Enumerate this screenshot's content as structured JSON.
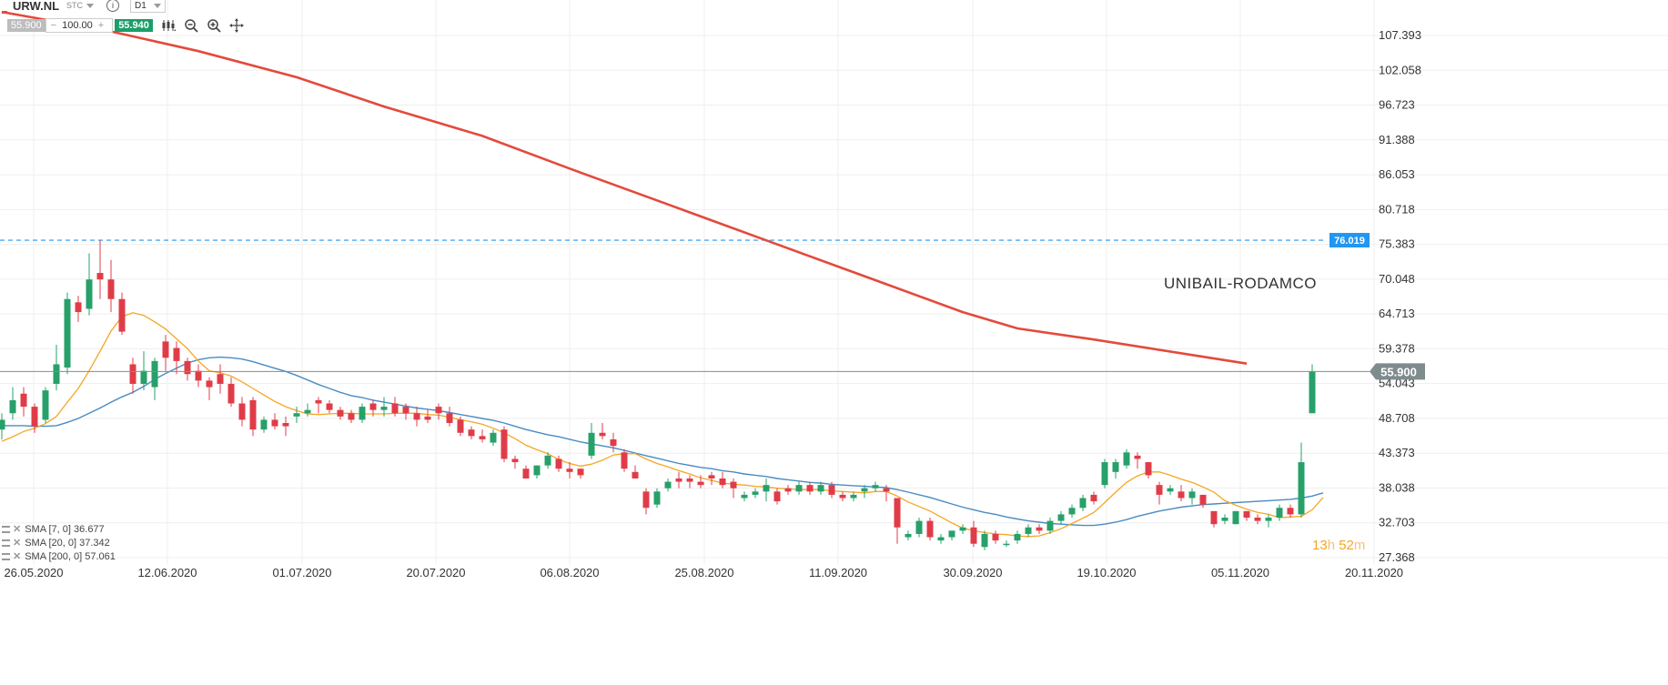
{
  "header": {
    "symbol": "URW.NL",
    "instrument_type": "STC",
    "info_icon": "info-icon",
    "timeframe": "D1",
    "sell_price": "55.900",
    "quantity": "100.00",
    "minus": "−",
    "plus": "+",
    "buy_price": "55.940",
    "tools": [
      "candlestick-icon",
      "zoom-out-icon",
      "zoom-in-icon",
      "crosshair-move-icon"
    ]
  },
  "countdown": {
    "hours": "13",
    "hours_unit": "h",
    "minutes": "52",
    "minutes_unit": "m"
  },
  "indicators": [
    {
      "label": "SMA [7, 0] 36.677"
    },
    {
      "label": "SMA [20, 0] 37.342"
    },
    {
      "label": "SMA [200, 0] 57.061"
    }
  ],
  "chart_data": {
    "type": "candlestick",
    "title": "UNIBAIL-RODAMCO",
    "timeframe": "D1",
    "x_ticks": [
      "26.05.2020",
      "12.06.2020",
      "01.07.2020",
      "20.07.2020",
      "06.08.2020",
      "25.08.2020",
      "11.09.2020",
      "30.09.2020",
      "19.10.2020",
      "05.11.2020",
      "20.11.2020"
    ],
    "y_ticks": [
      "107.393",
      "102.058",
      "96.723",
      "91.388",
      "86.053",
      "80.718",
      "75.383",
      "70.048",
      "64.713",
      "59.378",
      "54.043",
      "48.708",
      "43.373",
      "38.038",
      "32.703",
      "27.368"
    ],
    "ylim": [
      27.368,
      107.393
    ],
    "grid": true,
    "price_axis": "right",
    "current_price": {
      "value": 55.9,
      "label": "55.900",
      "color": "#7f8c8d"
    },
    "horizontal_line": {
      "value": 76.019,
      "label": "76.019",
      "style": "dashed",
      "color": "#2196f3"
    },
    "colors": {
      "up": "#27a06a",
      "down": "#e03c48",
      "sma7": "#f5a623",
      "sma20": "#4a8bc2",
      "sma200": "#e34a3c"
    },
    "candles": [
      [
        47.0,
        48.5,
        45.5,
        49.5
      ],
      [
        49.5,
        51.5,
        48.5,
        53.5
      ],
      [
        52.5,
        50.5,
        49.0,
        53.5
      ],
      [
        50.5,
        47.5,
        46.5,
        51.0
      ],
      [
        48.5,
        53.0,
        48.0,
        53.5
      ],
      [
        54.0,
        57.0,
        53.0,
        60.0
      ],
      [
        56.5,
        67.0,
        55.5,
        68.0
      ],
      [
        66.5,
        65.0,
        63.5,
        67.5
      ],
      [
        65.5,
        70.0,
        64.5,
        74.0
      ],
      [
        71.0,
        70.0,
        67.0,
        76.0
      ],
      [
        70.0,
        67.0,
        65.0,
        73.0
      ],
      [
        67.0,
        62.0,
        61.5,
        68.0
      ],
      [
        57.0,
        54.0,
        52.5,
        58.0
      ],
      [
        54.0,
        56.0,
        53.0,
        59.0
      ],
      [
        53.5,
        57.5,
        51.5,
        58.0
      ],
      [
        60.5,
        58.0,
        56.0,
        61.5
      ],
      [
        59.5,
        57.5,
        55.5,
        60.5
      ],
      [
        57.5,
        55.5,
        54.5,
        58.0
      ],
      [
        56.0,
        54.5,
        53.5,
        57.0
      ],
      [
        54.5,
        53.5,
        51.5,
        55.0
      ],
      [
        55.5,
        54.0,
        52.5,
        57.0
      ],
      [
        54.0,
        51.0,
        50.5,
        55.0
      ],
      [
        51.0,
        48.5,
        47.5,
        52.0
      ],
      [
        51.5,
        47.0,
        46.0,
        52.0
      ],
      [
        47.0,
        48.5,
        46.5,
        49.0
      ],
      [
        48.5,
        47.5,
        47.0,
        49.5
      ],
      [
        48.0,
        47.5,
        46.0,
        49.0
      ],
      [
        49.0,
        49.5,
        48.0,
        50.5
      ],
      [
        49.5,
        50.0,
        49.0,
        51.0
      ],
      [
        51.5,
        51.0,
        49.5,
        52.0
      ],
      [
        51.0,
        50.0,
        49.5,
        51.5
      ],
      [
        50.0,
        49.0,
        48.5,
        50.5
      ],
      [
        49.5,
        48.5,
        48.0,
        50.0
      ],
      [
        48.5,
        50.5,
        48.0,
        51.0
      ],
      [
        51.0,
        50.0,
        49.0,
        51.5
      ],
      [
        50.0,
        50.5,
        49.0,
        52.0
      ],
      [
        51.0,
        49.5,
        49.0,
        52.0
      ],
      [
        50.5,
        49.5,
        48.5,
        51.0
      ],
      [
        49.5,
        48.5,
        47.5,
        50.5
      ],
      [
        49.0,
        48.5,
        48.0,
        50.0
      ],
      [
        50.5,
        49.5,
        48.5,
        51.0
      ],
      [
        49.5,
        48.0,
        47.5,
        50.5
      ],
      [
        48.5,
        46.5,
        46.0,
        49.0
      ],
      [
        47.0,
        46.0,
        45.5,
        47.5
      ],
      [
        46.0,
        45.5,
        45.0,
        47.0
      ],
      [
        45.0,
        46.5,
        44.5,
        47.0
      ],
      [
        47.0,
        42.5,
        42.0,
        47.5
      ],
      [
        42.5,
        42.0,
        41.0,
        43.0
      ],
      [
        41.0,
        39.5,
        39.5,
        41.5
      ],
      [
        40.0,
        41.5,
        39.5,
        41.5
      ],
      [
        41.5,
        43.0,
        41.0,
        43.5
      ],
      [
        42.5,
        41.0,
        40.5,
        43.0
      ],
      [
        41.0,
        40.5,
        39.5,
        42.0
      ],
      [
        41.0,
        40.0,
        39.5,
        41.0
      ],
      [
        43.0,
        46.5,
        42.5,
        48.0
      ],
      [
        46.5,
        46.0,
        45.5,
        48.0
      ],
      [
        45.5,
        44.5,
        43.5,
        46.5
      ],
      [
        43.5,
        41.0,
        40.5,
        44.0
      ],
      [
        40.5,
        39.5,
        39.5,
        41.5
      ],
      [
        37.5,
        35.0,
        34.0,
        38.0
      ],
      [
        35.5,
        37.5,
        35.0,
        38.0
      ],
      [
        38.0,
        39.0,
        37.5,
        39.5
      ],
      [
        39.5,
        39.0,
        38.0,
        40.5
      ],
      [
        39.5,
        39.0,
        38.0,
        40.0
      ],
      [
        39.0,
        38.5,
        38.0,
        40.0
      ],
      [
        40.0,
        39.5,
        38.5,
        40.5
      ],
      [
        39.5,
        38.5,
        38.0,
        40.5
      ],
      [
        39.0,
        38.0,
        36.5,
        39.5
      ],
      [
        36.5,
        37.0,
        36.0,
        37.5
      ],
      [
        37.0,
        37.5,
        36.5,
        38.0
      ],
      [
        37.5,
        38.5,
        36.0,
        39.5
      ],
      [
        37.5,
        36.0,
        35.5,
        38.0
      ],
      [
        38.0,
        37.5,
        37.0,
        38.5
      ],
      [
        37.5,
        38.5,
        37.0,
        39.0
      ],
      [
        38.5,
        37.5,
        37.0,
        39.0
      ],
      [
        37.5,
        38.5,
        37.0,
        39.0
      ],
      [
        38.5,
        37.0,
        36.5,
        39.0
      ],
      [
        37.0,
        36.5,
        36.0,
        37.5
      ],
      [
        36.5,
        37.0,
        36.0,
        37.5
      ],
      [
        37.5,
        38.0,
        36.5,
        38.5
      ],
      [
        38.0,
        38.5,
        37.5,
        39.0
      ],
      [
        38.0,
        37.5,
        36.0,
        38.5
      ],
      [
        36.5,
        32.0,
        29.5,
        36.5
      ],
      [
        30.5,
        31.0,
        30.0,
        31.5
      ],
      [
        31.0,
        33.0,
        30.5,
        33.5
      ],
      [
        33.0,
        30.5,
        30.0,
        33.5
      ],
      [
        30.0,
        30.5,
        29.5,
        31.0
      ],
      [
        30.5,
        31.5,
        30.0,
        31.5
      ],
      [
        31.5,
        32.0,
        31.0,
        32.5
      ],
      [
        32.0,
        29.5,
        29.0,
        33.0
      ],
      [
        29.0,
        31.0,
        28.5,
        31.5
      ],
      [
        31.0,
        30.0,
        29.5,
        31.5
      ],
      [
        29.5,
        29.5,
        29.0,
        30.0
      ],
      [
        30.0,
        31.0,
        29.5,
        31.5
      ],
      [
        31.0,
        32.0,
        30.5,
        32.5
      ],
      [
        32.0,
        31.5,
        31.0,
        32.5
      ],
      [
        31.5,
        33.0,
        31.0,
        33.5
      ],
      [
        33.0,
        34.0,
        32.5,
        34.5
      ],
      [
        34.0,
        35.0,
        33.5,
        35.5
      ],
      [
        35.0,
        36.5,
        34.5,
        37.0
      ],
      [
        37.0,
        36.0,
        35.5,
        37.5
      ],
      [
        38.5,
        42.0,
        38.0,
        42.5
      ],
      [
        40.5,
        42.0,
        39.5,
        42.5
      ],
      [
        41.5,
        43.5,
        41.0,
        44.0
      ],
      [
        43.0,
        42.5,
        41.0,
        43.5
      ],
      [
        42.0,
        40.0,
        39.5,
        42.0
      ],
      [
        38.5,
        37.0,
        35.5,
        39.0
      ],
      [
        37.5,
        38.0,
        37.0,
        38.5
      ],
      [
        37.5,
        36.5,
        36.0,
        38.5
      ],
      [
        36.5,
        37.5,
        35.5,
        38.0
      ],
      [
        37.0,
        35.5,
        35.0,
        37.0
      ],
      [
        34.5,
        32.5,
        32.0,
        34.5
      ],
      [
        33.0,
        33.5,
        32.5,
        34.0
      ],
      [
        32.5,
        34.5,
        32.5,
        34.5
      ],
      [
        34.5,
        33.5,
        33.0,
        34.5
      ],
      [
        33.5,
        33.0,
        32.5,
        34.0
      ],
      [
        33.0,
        33.5,
        32.0,
        34.0
      ],
      [
        33.5,
        35.0,
        33.0,
        35.5
      ],
      [
        35.0,
        34.0,
        33.5,
        35.5
      ],
      [
        34.0,
        42.0,
        33.5,
        45.0
      ],
      [
        49.5,
        55.9,
        49.5,
        57.0
      ]
    ],
    "series": [
      {
        "name": "SMA [7, 0]",
        "values": [
          45.2,
          45.9,
          46.7,
          47.2,
          47.9,
          49.0,
          51.2,
          53.3,
          56.0,
          59.0,
          62.1,
          64.3,
          64.9,
          64.5,
          63.5,
          62.4,
          60.9,
          59.4,
          57.5,
          56.0,
          55.7,
          55.2,
          54.3,
          53.3,
          52.3,
          51.3,
          50.5,
          49.9,
          49.4,
          49.3,
          49.4,
          49.5,
          49.5,
          49.4,
          49.4,
          49.4,
          49.5,
          49.5,
          49.5,
          49.3,
          49.2,
          48.9,
          48.5,
          48.2,
          47.8,
          47.2,
          46.5,
          45.6,
          44.6,
          43.9,
          43.3,
          42.4,
          41.8,
          41.4,
          41.7,
          42.3,
          43.1,
          43.3,
          43.3,
          42.5,
          41.8,
          41.3,
          40.7,
          40.2,
          39.6,
          39.2,
          38.8,
          38.6,
          38.5,
          38.3,
          38.2,
          38.0,
          37.9,
          37.8,
          37.8,
          37.8,
          37.6,
          37.5,
          37.4,
          37.3,
          37.5,
          37.5,
          36.8,
          35.9,
          35.2,
          34.5,
          33.6,
          32.7,
          31.9,
          31.5,
          31.2,
          31.0,
          30.9,
          30.7,
          30.6,
          30.7,
          31.2,
          31.8,
          32.6,
          33.4,
          34.3,
          35.8,
          37.4,
          38.9,
          39.9,
          40.5,
          40.5,
          40.0,
          39.4,
          38.9,
          38.2,
          37.4,
          36.1,
          35.4,
          34.8,
          34.3,
          34.0,
          33.5,
          33.6,
          33.7,
          34.7,
          36.6
        ]
      },
      {
        "name": "SMA [20, 0]",
        "values": [
          47.6,
          47.6,
          47.6,
          47.5,
          47.5,
          47.6,
          48.1,
          48.7,
          49.5,
          50.3,
          51.2,
          52.0,
          52.7,
          53.6,
          54.7,
          55.6,
          56.4,
          57.2,
          57.7,
          58.0,
          58.1,
          58.0,
          57.8,
          57.4,
          56.9,
          56.4,
          55.9,
          55.3,
          54.6,
          53.9,
          53.3,
          52.7,
          52.2,
          51.9,
          51.5,
          51.2,
          50.9,
          50.6,
          50.3,
          50.1,
          49.9,
          49.6,
          49.3,
          49.0,
          48.7,
          48.4,
          48.0,
          47.5,
          47.0,
          46.6,
          46.2,
          45.9,
          45.5,
          45.1,
          44.8,
          44.5,
          44.2,
          43.8,
          43.4,
          43.0,
          42.6,
          42.2,
          41.8,
          41.5,
          41.2,
          41.0,
          40.7,
          40.5,
          40.2,
          40.0,
          39.8,
          39.5,
          39.3,
          39.1,
          38.9,
          38.8,
          38.6,
          38.5,
          38.4,
          38.3,
          38.2,
          38.1,
          37.8,
          37.4,
          37.0,
          36.6,
          36.1,
          35.6,
          35.1,
          34.7,
          34.3,
          34.0,
          33.6,
          33.3,
          33.0,
          32.8,
          32.6,
          32.5,
          32.4,
          32.3,
          32.3,
          32.5,
          32.8,
          33.2,
          33.7,
          34.1,
          34.5,
          34.8,
          35.1,
          35.3,
          35.5,
          35.6,
          35.7,
          35.8,
          35.9,
          36.0,
          36.1,
          36.2,
          36.3,
          36.5,
          36.8,
          37.3
        ]
      },
      {
        "name": "SMA [200, 0]",
        "values": [
          111.0,
          108.0,
          105.0,
          101.0,
          96.5,
          92.0,
          87.0,
          81.5,
          76.0,
          70.5,
          65.0,
          62.5,
          60.8,
          57.1
        ],
        "x_positions": [
          0,
          10,
          18,
          27,
          35,
          44,
          52,
          61,
          70,
          79,
          88,
          93,
          100,
          114
        ]
      }
    ],
    "title_position": "top-right"
  }
}
